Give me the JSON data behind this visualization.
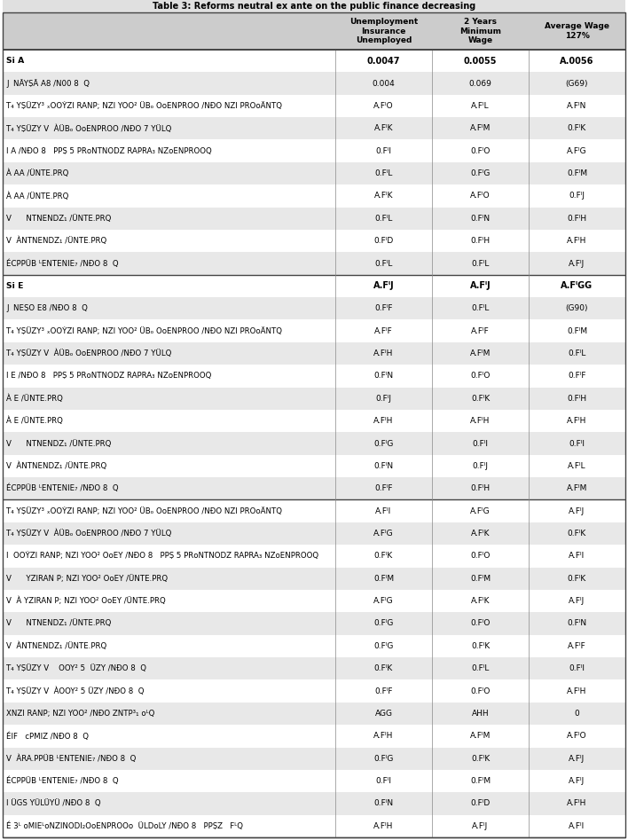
{
  "title": "Table 3: Reforms neutral ex ante on the public finance decreasing",
  "col_headers": [
    "Unemployment\nInsurance\nUnemployed",
    "2 Years\nMinimum\nWage",
    "Average Wage\n127%"
  ],
  "rows": [
    {
      "label": "Si A",
      "values": [
        "0.0047",
        "0.0055",
        "A.0056"
      ],
      "shade": false,
      "bold": true,
      "section_top": true
    },
    {
      "label": "J  NÃYṢÃ A8 /N00 8  Q",
      "values": [
        "0.004",
        "0.069",
        "(G69)"
      ],
      "shade": true,
      "bold": false
    },
    {
      "label": "T₄ YṢÜZY³ ₓOOẎZI RANP; NZI YOO² ÜBₒ OᴏENPROO /NÐO NZI PROᴏÄNTQ",
      "values": [
        "A.FᴵO",
        "A.FᴵL",
        "A.FᴵN"
      ],
      "shade": false,
      "bold": false
    },
    {
      "label": "T₄ YṢÜZY V  ÀÜBₒ OᴏENPROO /NÐO 7 YÜLQ",
      "values": [
        "A.FᴵK",
        "A.FᴵM",
        "0.FᴵK"
      ],
      "shade": true,
      "bold": false
    },
    {
      "label": "I A /NÐO 8   PPṢ 5 PRᴏNTNODZ RAPRA₃ NZᴏENPROOQ",
      "values": [
        "0.FᴵI",
        "0.FᴵO",
        "A.FᴵG"
      ],
      "shade": false,
      "bold": false
    },
    {
      "label": "À AA /ÜNTE.PRQ",
      "values": [
        "0.FᴵL",
        "0.FᴵG",
        "0.FᴵM"
      ],
      "shade": true,
      "bold": false
    },
    {
      "label": "À AA /ÜNTE.PRQ",
      "values": [
        "A.FᴵK",
        "A.FᴵO",
        "0.FᴵJ"
      ],
      "shade": false,
      "bold": false
    },
    {
      "label": "V      NTNENDZ₁ /ÜNTE.PRQ",
      "values": [
        "0.FᴵL",
        "0.FᴵN",
        "0.FᴵH"
      ],
      "shade": true,
      "bold": false
    },
    {
      "label": "V  ÀNTNENDZ₁ /ÜNTE.PRQ",
      "values": [
        "0.FᴵD",
        "0.FᴵH",
        "A.FᴵH"
      ],
      "shade": false,
      "bold": false
    },
    {
      "label": "ÉCPPÜB ᴸENTENIE₇ /NÐO 8  Q",
      "values": [
        "0.FᴵL",
        "0.FᴵL",
        "A.FᴵJ"
      ],
      "shade": true,
      "bold": false
    },
    {
      "label": "Si E",
      "values": [
        "A.FᴵJ",
        "A.FᴵJ",
        "A.FᴵGG"
      ],
      "shade": false,
      "bold": true,
      "section_top": true
    },
    {
      "label": "J  NEṢO E8 /NÐO 8  Q",
      "values": [
        "0.FᴵF",
        "0.FᴵL",
        "(G90)"
      ],
      "shade": true,
      "bold": false
    },
    {
      "label": "T₄ YṢÜZY³ ₓOOẎZI RANP; NZI YOO² ÜBₒ OᴏENPROO /NÐO NZI PROᴏÄNTQ",
      "values": [
        "A.FᴵF",
        "A.FᴵF",
        "0.FᴵM"
      ],
      "shade": false,
      "bold": false
    },
    {
      "label": "T₄ YṢÜZY V  ÀÜBₒ OᴏENPROO /NÐO 7 YÜLQ",
      "values": [
        "A.FᴵH",
        "A.FᴵM",
        "0.FᴵL"
      ],
      "shade": true,
      "bold": false
    },
    {
      "label": "I E /NÐO 8   PPṢ 5 PRᴏNTNODZ RAPRA₃ NZᴏENPROOQ",
      "values": [
        "0.FᴵN",
        "0.FᴵO",
        "0.FᴵF"
      ],
      "shade": false,
      "bold": false
    },
    {
      "label": "À E /ÜNTE.PRQ",
      "values": [
        "0.FᴵJ",
        "0.FᴵK",
        "0.FᴵH"
      ],
      "shade": true,
      "bold": false
    },
    {
      "label": "À E /ÜNTE.PRQ",
      "values": [
        "A.FᴵH",
        "A.FᴵH",
        "A.FᴵH"
      ],
      "shade": false,
      "bold": false
    },
    {
      "label": "V      NTNENDZ₁ /ÜNTE.PRQ",
      "values": [
        "0.FᴵG",
        "0.FᴵI",
        "0.FᴵI"
      ],
      "shade": true,
      "bold": false
    },
    {
      "label": "V  ÀNTNENDZ₁ /ÜNTE.PRQ",
      "values": [
        "0.FᴵN",
        "0.FᴵJ",
        "A.FᴵL"
      ],
      "shade": false,
      "bold": false
    },
    {
      "label": "ÉCPPÜB ᴸENTENIE₇ /NÐO 8  Q",
      "values": [
        "0.FᴵF",
        "0.FᴵH",
        "A.FᴵM"
      ],
      "shade": true,
      "bold": false
    },
    {
      "label": "T₄ YṢÜZY³ ₓOOẎZI RANP; NZI YOO² ÜBₒ OᴏENPROO /NÐO NZI PROᴏÄNTQ",
      "values": [
        "A.FᴵI",
        "A.FᴵG",
        "A.FᴵJ"
      ],
      "shade": false,
      "bold": false,
      "section_top": true
    },
    {
      "label": "T₄ YṢÜZY V  ÀÜBₒ OᴏENPROO /NÐO 7 YÜLQ",
      "values": [
        "A.FᴵG",
        "A.FᴵK",
        "0.FᴵK"
      ],
      "shade": true,
      "bold": false
    },
    {
      "label": "I  OOẎZI RANP; NZI YOO² OᴏEY /NÐO 8   PPṢ 5 PRᴏNTNODZ RAPRA₃ NZᴏENPROOQ",
      "values": [
        "0.FᴵK",
        "0.FᴵO",
        "A.FᴵI"
      ],
      "shade": false,
      "bold": false
    },
    {
      "label": "V      YZIRAN P; NZI YOO² OᴏEY /ÜNTE.PRQ",
      "values": [
        "0.FᴵM",
        "0.FᴵM",
        "0.FᴵK"
      ],
      "shade": true,
      "bold": false
    },
    {
      "label": "V  À YZIRAN P; NZI YOO² OᴏEY /ÜNTE.PRQ",
      "values": [
        "A.FᴵG",
        "A.FᴵK",
        "A.FᴵJ"
      ],
      "shade": false,
      "bold": false
    },
    {
      "label": "V      NTNENDZ₁ /ÜNTE.PRQ",
      "values": [
        "0.FᴵG",
        "0.FᴵO",
        "0.FᴵN"
      ],
      "shade": true,
      "bold": false
    },
    {
      "label": "V  ÀNTNENDZ₁ /ÜNTE.PRQ",
      "values": [
        "0.FᴵG",
        "0.FᴵK",
        "A.FᴵF"
      ],
      "shade": false,
      "bold": false
    },
    {
      "label": "T₄ YṢÜZY V    OOY² 5  ÜZY /NÐO 8  Q",
      "values": [
        "0.FᴵK",
        "0.FᴵL",
        "0.FᴵI"
      ],
      "shade": true,
      "bold": false
    },
    {
      "label": "T₄ YṢÜZY V  ÀOOY² 5 ÜZY /NÐO 8  Q",
      "values": [
        "0.FᴵF",
        "0.FᴵO",
        "A.FᴵH"
      ],
      "shade": false,
      "bold": false
    },
    {
      "label": "XNZI RANP; NZI YOO² /NÐO ZNTP³₁ ᴏᴸQ",
      "values": [
        "AGG",
        "AHH",
        "0"
      ],
      "shade": true,
      "bold": false
    },
    {
      "label": "ÉIF   cPMIZ /NÐO 8  Q",
      "values": [
        "A.FᴵH",
        "A.FᴵM",
        "A.FᴵO"
      ],
      "shade": false,
      "bold": false
    },
    {
      "label": "V  ÀRA.PPÜB ᴸENTENIE₇ /NÐO 8  Q",
      "values": [
        "0.FᴵG",
        "0.FᴵK",
        "A.FᴵJ"
      ],
      "shade": true,
      "bold": false
    },
    {
      "label": "ÉCPPÜB ᴸENTENIE₇ /NÐO 8  Q",
      "values": [
        "0.FᴵI",
        "0.FᴵM",
        "A.FᴵJ"
      ],
      "shade": false,
      "bold": false
    },
    {
      "label": "I ÜGS YÜLÜYÜ /NÐO 8  Q",
      "values": [
        "0.FᴵN",
        "0.FᴵD",
        "A.FᴵH"
      ],
      "shade": true,
      "bold": false
    },
    {
      "label": "É 3ᴸ ᴏMIEᴸᴏNZINODI₂OᴏENPROOᴏ  ÜLDᴏLY /NÐO 8   PPṢZ   FᴸQ",
      "values": [
        "A.FᴵH",
        "A.FᴵJ",
        "A.FᴵI"
      ],
      "shade": false,
      "bold": false
    }
  ],
  "section_lines": [
    0,
    10,
    20
  ],
  "bg_shade": "#e8e8e8",
  "bg_white": "#ffffff",
  "header_bg": "#cccccc",
  "text_color": "#000000",
  "title_top_bg": "#e0e0e0",
  "font_size": 6.2,
  "val_font_size": 6.5,
  "header_font_size": 6.5
}
